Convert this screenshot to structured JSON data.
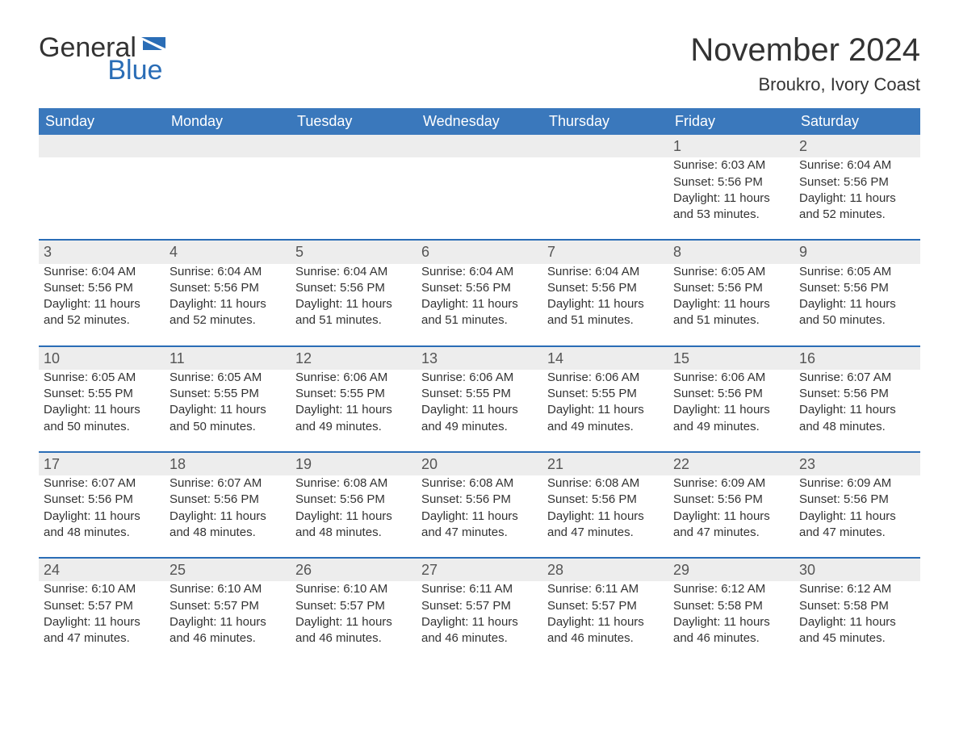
{
  "logo": {
    "word1": "General",
    "word2": "Blue"
  },
  "title": "November 2024",
  "location": "Broukro, Ivory Coast",
  "colors": {
    "header_bg": "#3a78bc",
    "header_text": "#ffffff",
    "row_border": "#2a6db6",
    "daynum_bg": "#ededed",
    "text": "#333333",
    "logo_blue": "#2a6db6",
    "background": "#ffffff"
  },
  "weekdays": [
    "Sunday",
    "Monday",
    "Tuesday",
    "Wednesday",
    "Thursday",
    "Friday",
    "Saturday"
  ],
  "weeks": [
    [
      null,
      null,
      null,
      null,
      null,
      {
        "n": "1",
        "sunrise": "Sunrise: 6:03 AM",
        "sunset": "Sunset: 5:56 PM",
        "day1": "Daylight: 11 hours",
        "day2": "and 53 minutes."
      },
      {
        "n": "2",
        "sunrise": "Sunrise: 6:04 AM",
        "sunset": "Sunset: 5:56 PM",
        "day1": "Daylight: 11 hours",
        "day2": "and 52 minutes."
      }
    ],
    [
      {
        "n": "3",
        "sunrise": "Sunrise: 6:04 AM",
        "sunset": "Sunset: 5:56 PM",
        "day1": "Daylight: 11 hours",
        "day2": "and 52 minutes."
      },
      {
        "n": "4",
        "sunrise": "Sunrise: 6:04 AM",
        "sunset": "Sunset: 5:56 PM",
        "day1": "Daylight: 11 hours",
        "day2": "and 52 minutes."
      },
      {
        "n": "5",
        "sunrise": "Sunrise: 6:04 AM",
        "sunset": "Sunset: 5:56 PM",
        "day1": "Daylight: 11 hours",
        "day2": "and 51 minutes."
      },
      {
        "n": "6",
        "sunrise": "Sunrise: 6:04 AM",
        "sunset": "Sunset: 5:56 PM",
        "day1": "Daylight: 11 hours",
        "day2": "and 51 minutes."
      },
      {
        "n": "7",
        "sunrise": "Sunrise: 6:04 AM",
        "sunset": "Sunset: 5:56 PM",
        "day1": "Daylight: 11 hours",
        "day2": "and 51 minutes."
      },
      {
        "n": "8",
        "sunrise": "Sunrise: 6:05 AM",
        "sunset": "Sunset: 5:56 PM",
        "day1": "Daylight: 11 hours",
        "day2": "and 51 minutes."
      },
      {
        "n": "9",
        "sunrise": "Sunrise: 6:05 AM",
        "sunset": "Sunset: 5:56 PM",
        "day1": "Daylight: 11 hours",
        "day2": "and 50 minutes."
      }
    ],
    [
      {
        "n": "10",
        "sunrise": "Sunrise: 6:05 AM",
        "sunset": "Sunset: 5:55 PM",
        "day1": "Daylight: 11 hours",
        "day2": "and 50 minutes."
      },
      {
        "n": "11",
        "sunrise": "Sunrise: 6:05 AM",
        "sunset": "Sunset: 5:55 PM",
        "day1": "Daylight: 11 hours",
        "day2": "and 50 minutes."
      },
      {
        "n": "12",
        "sunrise": "Sunrise: 6:06 AM",
        "sunset": "Sunset: 5:55 PM",
        "day1": "Daylight: 11 hours",
        "day2": "and 49 minutes."
      },
      {
        "n": "13",
        "sunrise": "Sunrise: 6:06 AM",
        "sunset": "Sunset: 5:55 PM",
        "day1": "Daylight: 11 hours",
        "day2": "and 49 minutes."
      },
      {
        "n": "14",
        "sunrise": "Sunrise: 6:06 AM",
        "sunset": "Sunset: 5:55 PM",
        "day1": "Daylight: 11 hours",
        "day2": "and 49 minutes."
      },
      {
        "n": "15",
        "sunrise": "Sunrise: 6:06 AM",
        "sunset": "Sunset: 5:56 PM",
        "day1": "Daylight: 11 hours",
        "day2": "and 49 minutes."
      },
      {
        "n": "16",
        "sunrise": "Sunrise: 6:07 AM",
        "sunset": "Sunset: 5:56 PM",
        "day1": "Daylight: 11 hours",
        "day2": "and 48 minutes."
      }
    ],
    [
      {
        "n": "17",
        "sunrise": "Sunrise: 6:07 AM",
        "sunset": "Sunset: 5:56 PM",
        "day1": "Daylight: 11 hours",
        "day2": "and 48 minutes."
      },
      {
        "n": "18",
        "sunrise": "Sunrise: 6:07 AM",
        "sunset": "Sunset: 5:56 PM",
        "day1": "Daylight: 11 hours",
        "day2": "and 48 minutes."
      },
      {
        "n": "19",
        "sunrise": "Sunrise: 6:08 AM",
        "sunset": "Sunset: 5:56 PM",
        "day1": "Daylight: 11 hours",
        "day2": "and 48 minutes."
      },
      {
        "n": "20",
        "sunrise": "Sunrise: 6:08 AM",
        "sunset": "Sunset: 5:56 PM",
        "day1": "Daylight: 11 hours",
        "day2": "and 47 minutes."
      },
      {
        "n": "21",
        "sunrise": "Sunrise: 6:08 AM",
        "sunset": "Sunset: 5:56 PM",
        "day1": "Daylight: 11 hours",
        "day2": "and 47 minutes."
      },
      {
        "n": "22",
        "sunrise": "Sunrise: 6:09 AM",
        "sunset": "Sunset: 5:56 PM",
        "day1": "Daylight: 11 hours",
        "day2": "and 47 minutes."
      },
      {
        "n": "23",
        "sunrise": "Sunrise: 6:09 AM",
        "sunset": "Sunset: 5:56 PM",
        "day1": "Daylight: 11 hours",
        "day2": "and 47 minutes."
      }
    ],
    [
      {
        "n": "24",
        "sunrise": "Sunrise: 6:10 AM",
        "sunset": "Sunset: 5:57 PM",
        "day1": "Daylight: 11 hours",
        "day2": "and 47 minutes."
      },
      {
        "n": "25",
        "sunrise": "Sunrise: 6:10 AM",
        "sunset": "Sunset: 5:57 PM",
        "day1": "Daylight: 11 hours",
        "day2": "and 46 minutes."
      },
      {
        "n": "26",
        "sunrise": "Sunrise: 6:10 AM",
        "sunset": "Sunset: 5:57 PM",
        "day1": "Daylight: 11 hours",
        "day2": "and 46 minutes."
      },
      {
        "n": "27",
        "sunrise": "Sunrise: 6:11 AM",
        "sunset": "Sunset: 5:57 PM",
        "day1": "Daylight: 11 hours",
        "day2": "and 46 minutes."
      },
      {
        "n": "28",
        "sunrise": "Sunrise: 6:11 AM",
        "sunset": "Sunset: 5:57 PM",
        "day1": "Daylight: 11 hours",
        "day2": "and 46 minutes."
      },
      {
        "n": "29",
        "sunrise": "Sunrise: 6:12 AM",
        "sunset": "Sunset: 5:58 PM",
        "day1": "Daylight: 11 hours",
        "day2": "and 46 minutes."
      },
      {
        "n": "30",
        "sunrise": "Sunrise: 6:12 AM",
        "sunset": "Sunset: 5:58 PM",
        "day1": "Daylight: 11 hours",
        "day2": "and 45 minutes."
      }
    ]
  ]
}
